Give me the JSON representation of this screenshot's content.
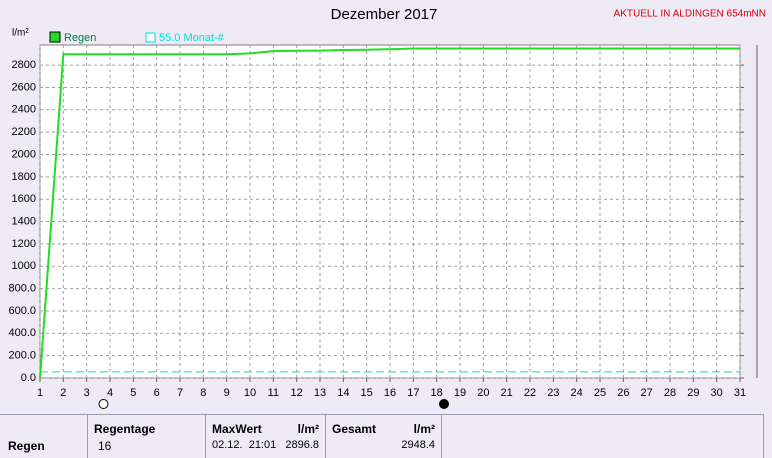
{
  "chart_data": {
    "type": "line",
    "title": "Dezember 2017",
    "subtitle": "AKTUELL IN ALDINGEN 654mNN",
    "y_label": "l/m²",
    "x": [
      1,
      2,
      3,
      4,
      5,
      6,
      7,
      8,
      9,
      10,
      11,
      12,
      13,
      14,
      15,
      16,
      17,
      18,
      19,
      20,
      21,
      22,
      23,
      24,
      25,
      26,
      27,
      28,
      29,
      30,
      31
    ],
    "series": [
      {
        "name": "Regen",
        "color": "#22dd22",
        "values": [
          0,
          2896.8,
          2896.8,
          2896.8,
          2896.8,
          2896.8,
          2896.8,
          2896.8,
          2896.8,
          2905,
          2925,
          2928,
          2930,
          2935,
          2938,
          2942,
          2948.4,
          2948.4,
          2948.4,
          2948.4,
          2948.4,
          2948.4,
          2948.4,
          2948.4,
          2948.4,
          2948.4,
          2948.4,
          2948.4,
          2948.4,
          2948.4,
          2948.4
        ]
      }
    ],
    "reference_line": {
      "name": "55.0 Monat-#",
      "value": 55,
      "color": "#00dddd"
    },
    "xlim": [
      1,
      31
    ],
    "xticks": [
      1,
      2,
      3,
      4,
      5,
      6,
      7,
      8,
      9,
      10,
      11,
      12,
      13,
      14,
      15,
      16,
      17,
      18,
      19,
      20,
      21,
      22,
      23,
      24,
      25,
      26,
      27,
      28,
      29,
      30,
      31
    ],
    "ylim": [
      0,
      2980
    ],
    "yticks": [
      {
        "value": 0,
        "label": "0.0"
      },
      {
        "value": 200,
        "label": "200.0"
      },
      {
        "value": 400,
        "label": "400.0"
      },
      {
        "value": 600,
        "label": "600.0"
      },
      {
        "value": 800,
        "label": "800.0"
      },
      1000,
      1200,
      1400,
      1600,
      1800,
      2000,
      2200,
      2400,
      2600,
      2800
    ],
    "grid": true
  },
  "table": {
    "row_label": "Regen",
    "columns": [
      {
        "header": "Regentage",
        "value": "16"
      },
      {
        "header": "MaxWert",
        "unit": "l/m²",
        "date": "02.12.  21:01",
        "value": "2896.8"
      },
      {
        "header": "Gesamt",
        "unit": "l/m²",
        "value": "2948.4"
      }
    ]
  }
}
